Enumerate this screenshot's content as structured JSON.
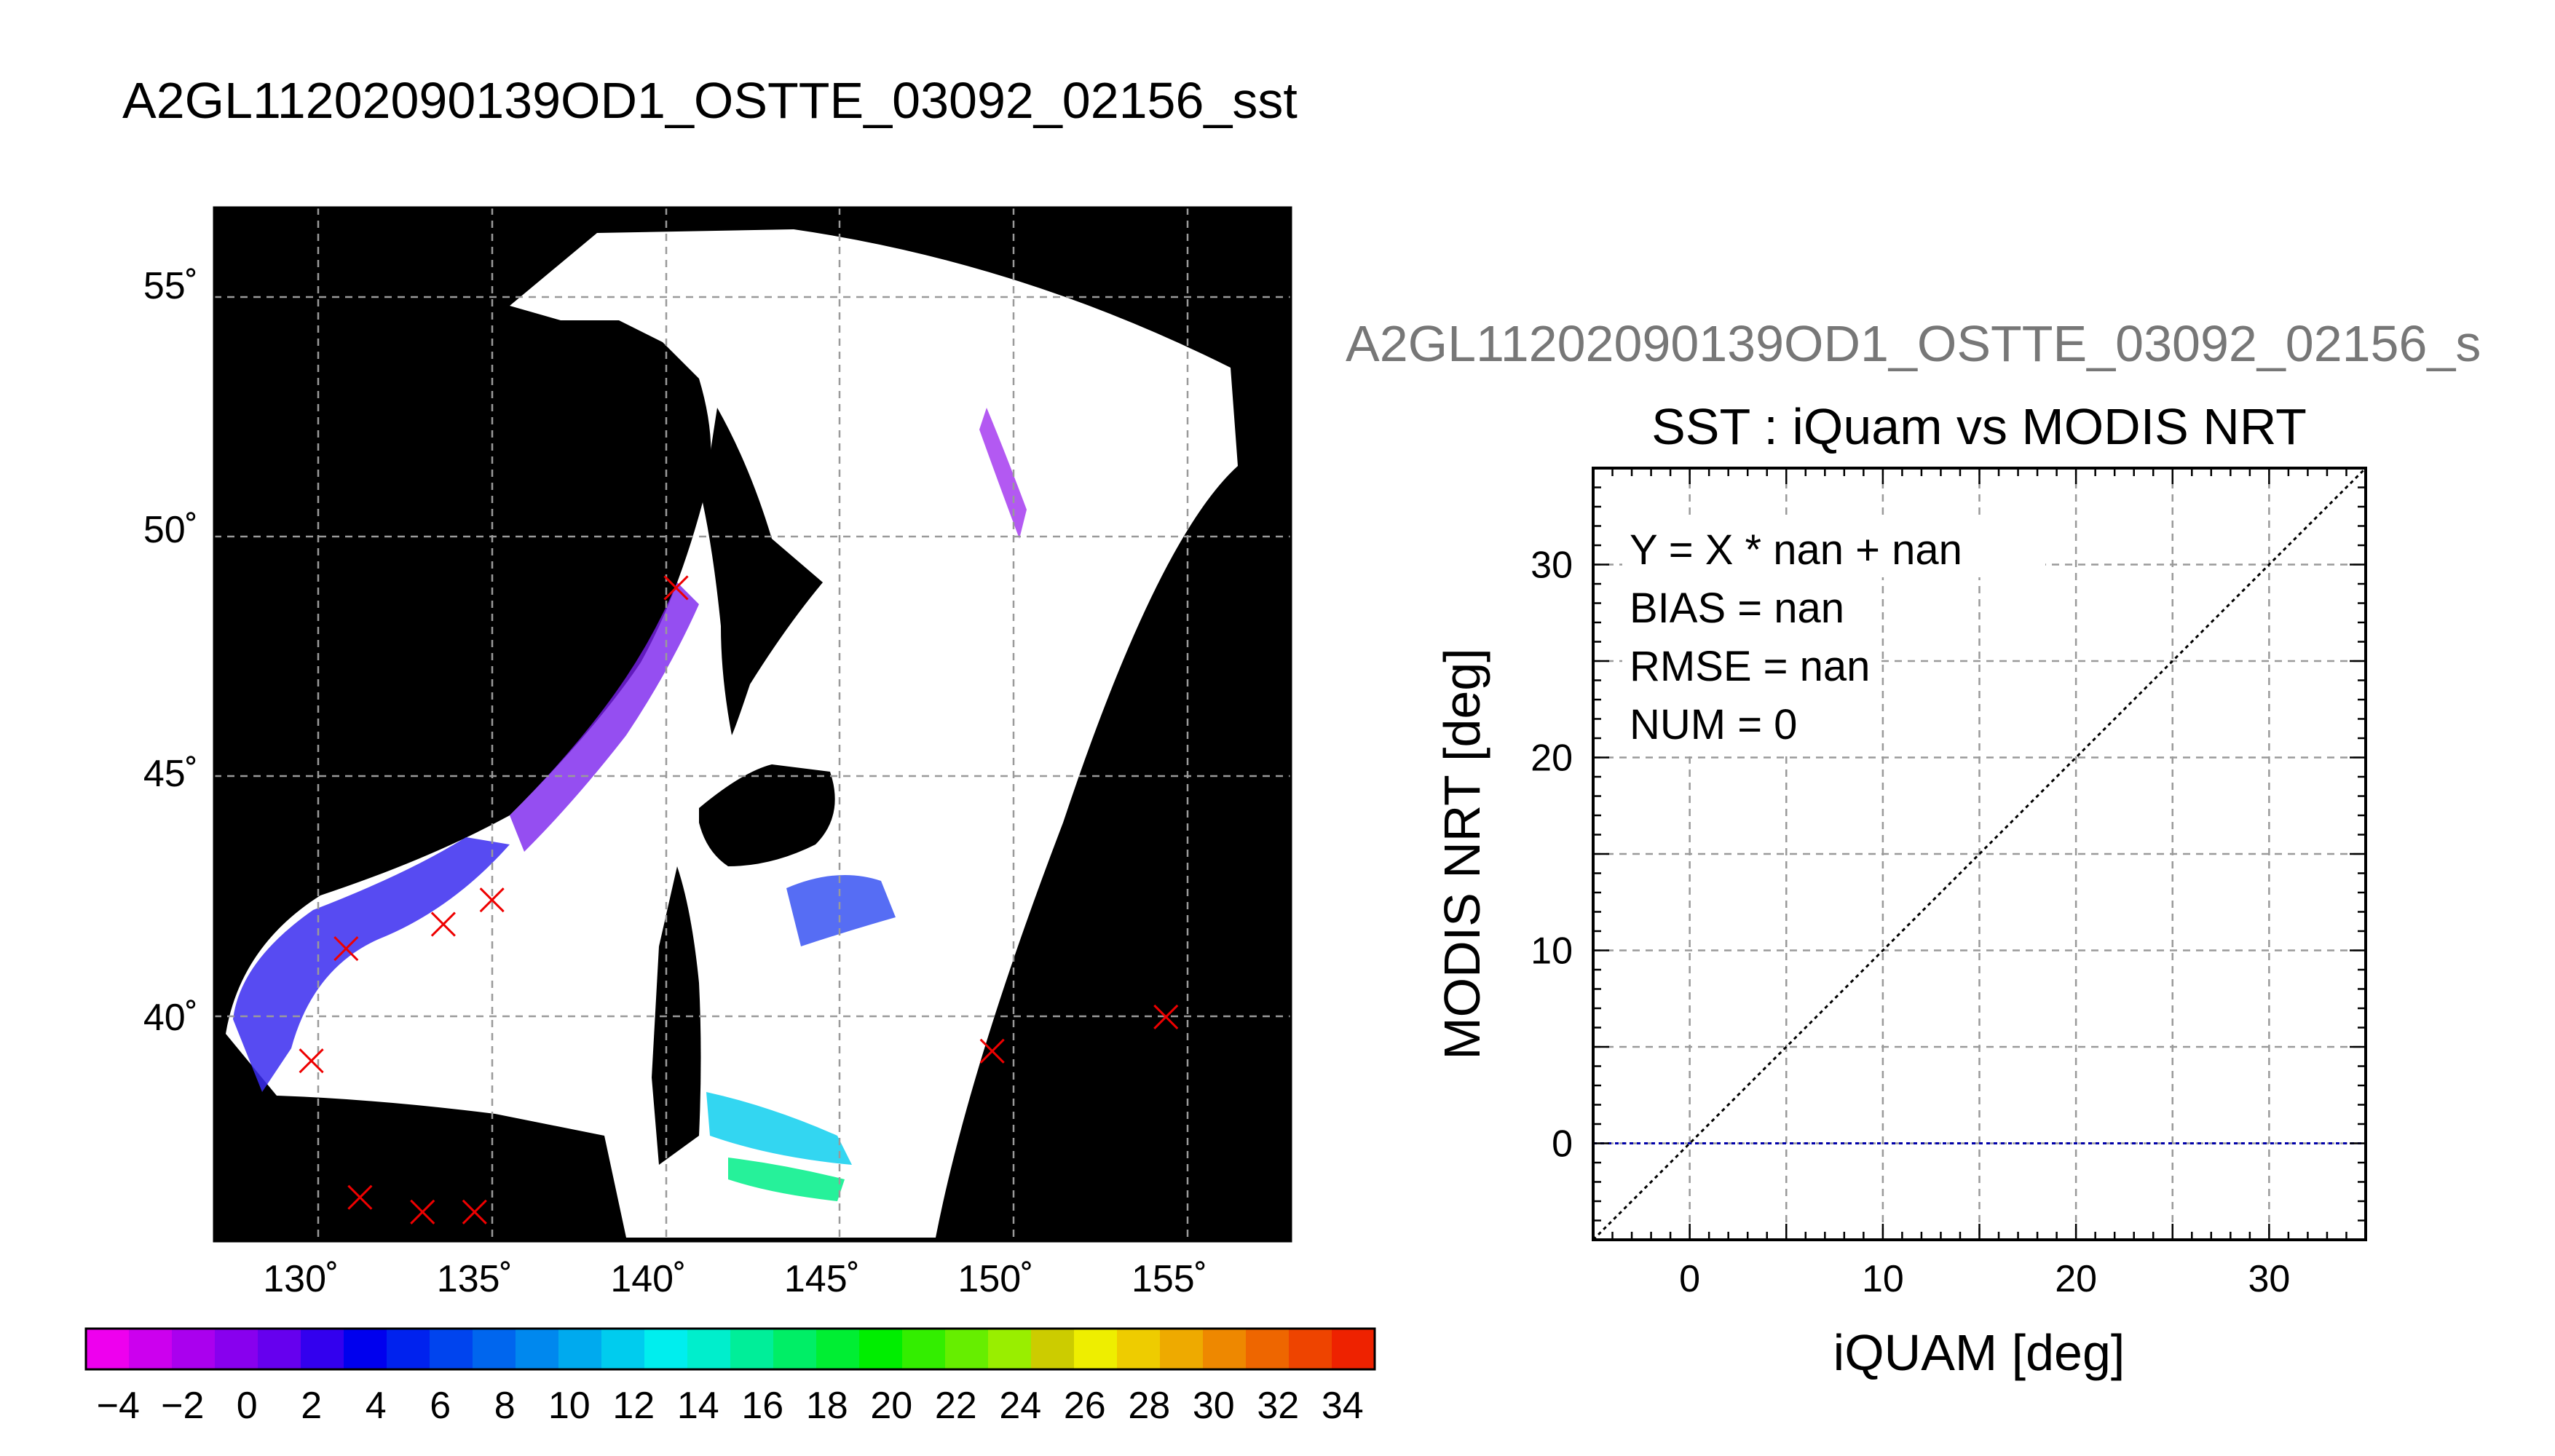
{
  "main_title": "A2GL11202090139OD1_OSTTE_03092_02156_sst",
  "scatter_top_label": "A2GL11202090139OD1_OSTTE_03092_02156_s",
  "colors": {
    "map_background": "#000000",
    "land_cloud": "#ffffff",
    "marker": "#ee0000",
    "grid": "#9a9a9a",
    "bias_line": "#0000aa",
    "identity_line": "#000000",
    "gray_text": "#777777"
  },
  "chart_data": [
    {
      "type": "map",
      "title": "A2GL11202090139OD1_OSTTE_03092_02156_sst",
      "lon_range": [
        127.5,
        158.5
      ],
      "lat_range": [
        35.4,
        56.6
      ],
      "lon_ticks": [
        130,
        135,
        140,
        145,
        150,
        155
      ],
      "lon_tick_labels": [
        "130˚",
        "135˚",
        "140˚",
        "145˚",
        "150˚",
        "155˚"
      ],
      "lat_ticks": [
        40,
        45,
        50,
        55
      ],
      "lat_tick_labels": [
        "40˚",
        "45˚",
        "50˚",
        "55˚"
      ],
      "grid": true,
      "markers": [
        {
          "lon": 140.8,
          "lat": 48.8
        },
        {
          "lon": 134.1,
          "lat": 41.9
        },
        {
          "lon": 135.5,
          "lat": 42.4
        },
        {
          "lon": 131.3,
          "lat": 41.4
        },
        {
          "lon": 130.3,
          "lat": 39.1
        },
        {
          "lon": 149.9,
          "lat": 39.3
        },
        {
          "lon": 154.9,
          "lat": 40.0
        },
        {
          "lon": 131.7,
          "lat": 36.3
        },
        {
          "lon": 133.5,
          "lat": 36.0
        },
        {
          "lon": 135.0,
          "lat": 36.0
        }
      ]
    },
    {
      "type": "colorbar",
      "min": -5,
      "max": 35,
      "step": 2,
      "tick_labels": [
        "−4",
        "−2",
        "0",
        "2",
        "4",
        "6",
        "8",
        "10",
        "12",
        "14",
        "16",
        "18",
        "20",
        "22",
        "24",
        "26",
        "28",
        "30",
        "32",
        "34"
      ],
      "colors": [
        "#ee00ee",
        "#cc00ee",
        "#aa00ee",
        "#8800ee",
        "#6600ee",
        "#3300ee",
        "#0000ee",
        "#0022ee",
        "#0044ee",
        "#0066ee",
        "#0088ee",
        "#00aaee",
        "#00ccee",
        "#00eeee",
        "#00eecc",
        "#00ee99",
        "#00ee66",
        "#00ee33",
        "#00ee00",
        "#33ee00",
        "#66ee00",
        "#99ee00",
        "#cccc00",
        "#eeee00",
        "#eecc00",
        "#eeaa00",
        "#ee8800",
        "#ee6600",
        "#ee4400",
        "#ee2200"
      ]
    },
    {
      "type": "scatter",
      "title": "SST : iQuam vs MODIS NRT",
      "xlabel": "iQUAM [deg]",
      "ylabel": "MODIS NRT [deg]",
      "xlim": [
        -5,
        35
      ],
      "ylim": [
        -5,
        35
      ],
      "x_ticks": [
        0,
        10,
        20,
        30
      ],
      "y_ticks": [
        0,
        10,
        20,
        30
      ],
      "grid": true,
      "points": [],
      "annotations": [
        "Y = X * nan + nan",
        "BIAS = nan",
        "RMSE = nan",
        "NUM = 0"
      ],
      "reference_lines": [
        {
          "kind": "identity",
          "style": "dotted",
          "color": "#000000"
        },
        {
          "kind": "horizontal",
          "y": 0,
          "style": "dotted",
          "color": "#0000aa"
        }
      ]
    }
  ]
}
